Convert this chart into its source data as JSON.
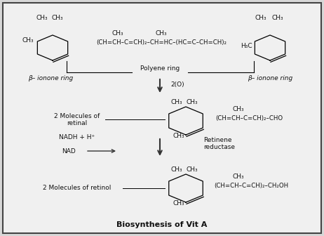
{
  "title": "Biosynthesis of Vit A",
  "bg": "#d8d8d8",
  "panel": "#f0f0f0",
  "border": "#444444",
  "tc": "#111111",
  "ac": "#333333",
  "top_left_ch3_1": "CH₃",
  "top_left_ch3_2": "CH₃",
  "top_left_ch3_3": "CH₃",
  "top_center_ch3": "CH₃",
  "top_center_ch3_2": "CH₃",
  "top_chain_left": "(CH=CH–C=CH)₂–CH=HC–",
  "top_chain_right": "(HC=C–CH=CH)₂",
  "top_right_h3c": "H₃C",
  "top_right_ch3_1": "CH₃",
  "top_right_ch3_2": "CH₃",
  "beta_left": "β– ionone ring",
  "beta_right": "β– ionone ring",
  "polyene": "Polyene ring",
  "two_o": "2(O)",
  "retinal_label_1": "2 Molecules of",
  "retinal_label_2": "retinal",
  "retinal_ch3_1": "CH₃",
  "retinal_ch3_2": "CH₃",
  "retinal_ch3_3": "CH₃",
  "retinal_ch3_4": "CH₃",
  "retinal_chain": "(CH=CH–C=CH)₂–CHO",
  "nadh": "NADH + H⁺",
  "nad": "NAD",
  "enzyme_1": "Retinene",
  "enzyme_2": "reductase",
  "retinol_label": "2 Molecules of retinol",
  "retinol_ch3_1": "CH₃",
  "retinol_ch3_2": "CH₃",
  "retinol_ch3_3": "CH₃",
  "retinol_ch3_4": "CH₃",
  "retinol_chain": "(CH=CH–C=CH)₂–CH₂OH"
}
